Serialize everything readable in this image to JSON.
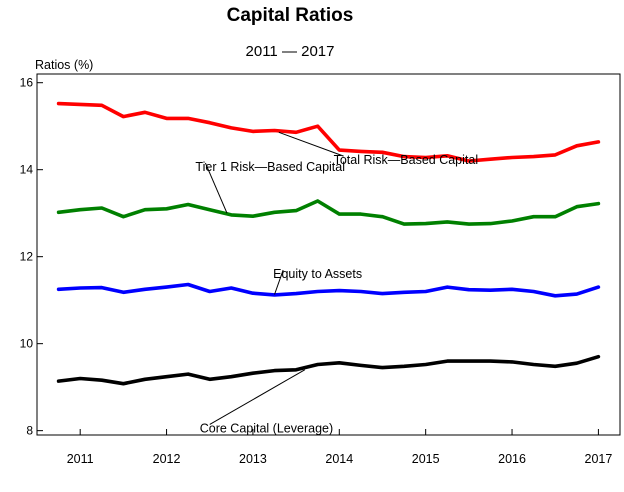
{
  "chart_data": {
    "type": "line",
    "title": "Capital Ratios",
    "subtitle": "2011 — 2017",
    "ylabel": "Ratios (%)",
    "xlabel": "",
    "ylim": [
      7.9,
      16.2
    ],
    "xlim": [
      2010.5,
      2017.25
    ],
    "grid": false,
    "y_ticks": [
      "8",
      "10",
      "12",
      "14",
      "16"
    ],
    "y_tick_values": [
      8,
      10,
      12,
      14,
      16
    ],
    "x_ticks": [
      "2011",
      "2012",
      "2013",
      "2014",
      "2015",
      "2016",
      "2017"
    ],
    "x_tick_values": [
      2011,
      2012,
      2013,
      2014,
      2015,
      2016,
      2017
    ],
    "x": [
      2010.75,
      2011.0,
      2011.25,
      2011.5,
      2011.75,
      2012.0,
      2012.25,
      2012.5,
      2012.75,
      2013.0,
      2013.25,
      2013.5,
      2013.75,
      2014.0,
      2014.25,
      2014.5,
      2014.75,
      2015.0,
      2015.25,
      2015.5,
      2015.75,
      2016.0,
      2016.25,
      2016.5,
      2016.75,
      2017.0
    ],
    "series": [
      {
        "name": "Total Risk—Based Capital",
        "color": "#ff0000",
        "values": [
          15.52,
          15.5,
          15.48,
          15.22,
          15.32,
          15.18,
          15.18,
          15.08,
          14.96,
          14.88,
          14.9,
          14.86,
          15.0,
          14.45,
          14.42,
          14.4,
          14.3,
          14.28,
          14.32,
          14.2,
          14.24,
          14.28,
          14.3,
          14.34,
          14.55,
          14.64
        ]
      },
      {
        "name": "Tier 1 Risk—Based Capital",
        "color": "#008000",
        "values": [
          13.02,
          13.08,
          13.12,
          12.92,
          13.08,
          13.1,
          13.2,
          13.08,
          12.96,
          12.93,
          13.02,
          13.06,
          13.28,
          12.98,
          12.98,
          12.92,
          12.75,
          12.76,
          12.8,
          12.75,
          12.76,
          12.82,
          12.92,
          12.92,
          13.15,
          13.22
        ]
      },
      {
        "name": "Equity to Assets",
        "color": "#0000ff",
        "values": [
          11.25,
          11.28,
          11.29,
          11.18,
          11.25,
          11.3,
          11.36,
          11.2,
          11.28,
          11.16,
          11.12,
          11.15,
          11.2,
          11.22,
          11.2,
          11.15,
          11.18,
          11.2,
          11.3,
          11.24,
          11.23,
          11.25,
          11.2,
          11.1,
          11.14,
          11.3
        ]
      },
      {
        "name": "Core Capital (Leverage)",
        "color": "#000000",
        "values": [
          9.14,
          9.2,
          9.16,
          9.08,
          9.18,
          9.24,
          9.3,
          9.18,
          9.24,
          9.32,
          9.38,
          9.4,
          9.52,
          9.56,
          9.5,
          9.45,
          9.48,
          9.52,
          9.6,
          9.6,
          9.6,
          9.58,
          9.52,
          9.48,
          9.55,
          9.7
        ]
      }
    ],
    "annotations": [
      {
        "series": 0,
        "text": "Total Risk—Based Capital",
        "anchor_x": 2013.3,
        "anchor_y": 14.86,
        "text_x": 2014.05,
        "text_y": 14.22
      },
      {
        "series": 1,
        "text": "Tier 1 Risk—Based Capital",
        "anchor_x": 2012.7,
        "anchor_y": 13.0,
        "text_x": 2012.45,
        "text_y": 14.06
      },
      {
        "series": 2,
        "text": "Equity to Assets",
        "anchor_x": 2013.25,
        "anchor_y": 11.13,
        "text_x": 2013.35,
        "text_y": 11.6
      },
      {
        "series": 3,
        "text": "Core Capital (Leverage)",
        "anchor_x": 2013.6,
        "anchor_y": 9.4,
        "text_x": 2012.5,
        "text_y": 8.05
      }
    ]
  }
}
